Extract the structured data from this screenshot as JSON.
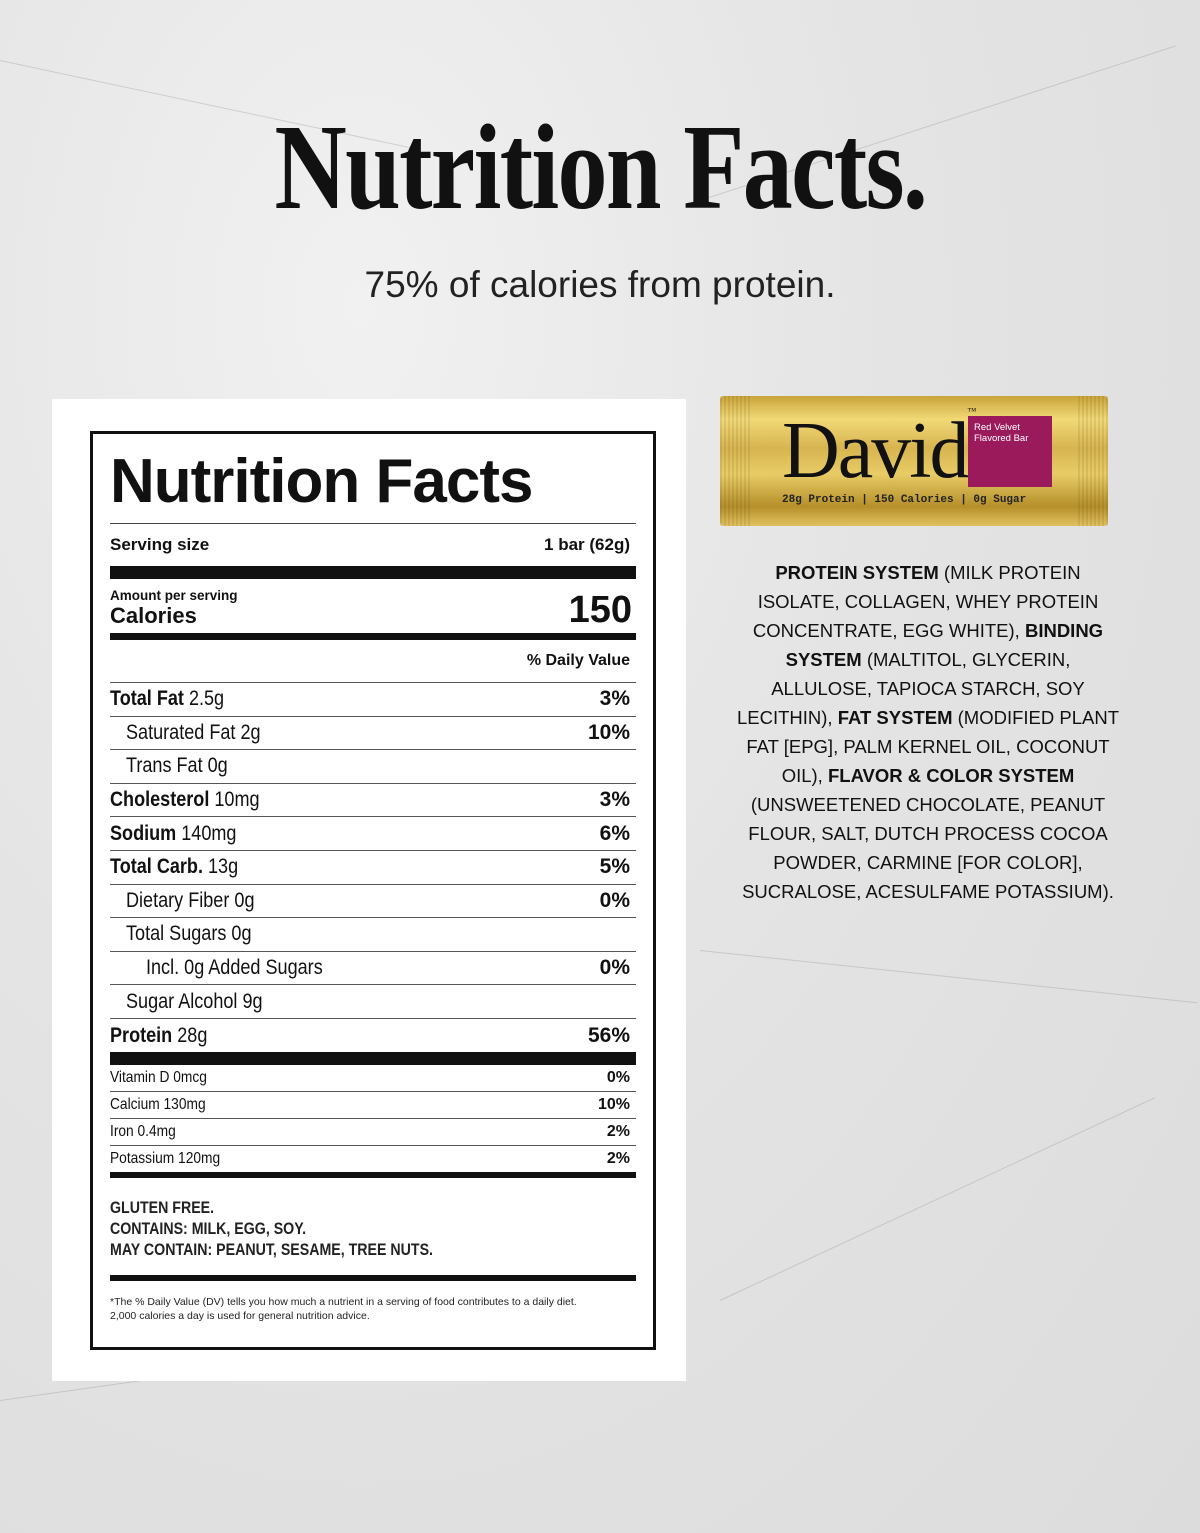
{
  "header": {
    "title": "Nutrition Facts.",
    "subtitle": "75% of calories from protein."
  },
  "label": {
    "title": "Nutrition Facts",
    "serving_label": "Serving size",
    "serving_value": "1 bar (62g)",
    "amount_per_serving": "Amount per serving",
    "calories_label": "Calories",
    "calories_value": "150",
    "dv_header": "% Daily Value",
    "nutrients": [
      {
        "name": "Total Fat",
        "amount": "2.5g",
        "dv": "3%",
        "bold": true,
        "indent": 0
      },
      {
        "name": "Saturated Fat",
        "amount": "2g",
        "dv": "10%",
        "bold": false,
        "indent": 1
      },
      {
        "name": "Trans Fat",
        "amount": "0g",
        "dv": "",
        "bold": false,
        "indent": 1
      },
      {
        "name": "Cholesterol",
        "amount": "10mg",
        "dv": "3%",
        "bold": true,
        "indent": 0
      },
      {
        "name": "Sodium",
        "amount": "140mg",
        "dv": "6%",
        "bold": true,
        "indent": 0
      },
      {
        "name": "Total Carb.",
        "amount": "13g",
        "dv": "5%",
        "bold": true,
        "indent": 0
      },
      {
        "name": "Dietary Fiber",
        "amount": "0g",
        "dv": "0%",
        "bold": false,
        "indent": 1
      },
      {
        "name": "Total Sugars",
        "amount": "0g",
        "dv": "",
        "bold": false,
        "indent": 1
      },
      {
        "name": "Incl.",
        "amount": "0g Added Sugars",
        "dv": "0%",
        "bold": false,
        "indent": 2
      },
      {
        "name": "Sugar Alcohol",
        "amount": "9g",
        "dv": "",
        "bold": false,
        "indent": 1
      },
      {
        "name": "Protein",
        "amount": "28g",
        "dv": "56%",
        "bold": true,
        "indent": 0
      }
    ],
    "vitamins": [
      {
        "name": "Vitamin D 0mcg",
        "dv": "0%"
      },
      {
        "name": "Calcium 130mg",
        "dv": "10%"
      },
      {
        "name": "Iron 0.4mg",
        "dv": "2%"
      },
      {
        "name": "Potassium 120mg",
        "dv": "2%"
      }
    ],
    "allergens": [
      "GLUTEN FREE.",
      "CONTAINS: MILK, EGG, SOY.",
      "MAY CONTAIN: PEANUT, SESAME, TREE NUTS."
    ],
    "footnote": [
      "*The % Daily Value (DV) tells you how much a nutrient in a serving of food contributes to a daily diet.",
      "2,000 calories a day is used for general nutrition advice."
    ]
  },
  "product": {
    "brand": "David",
    "trademark": "™",
    "flavor": [
      "Red Velvet",
      "Flavored Bar"
    ],
    "stats": "28g Protein | 150 Calories | 0g Sugar",
    "flavor_color": "#9a1a5c"
  },
  "ingredients": [
    [
      {
        "t": "PROTEIN SYSTEM",
        "b": true
      },
      {
        "t": " (MILK PROTEIN",
        "b": false
      }
    ],
    [
      {
        "t": "ISOLATE, COLLAGEN, WHEY PROTEIN",
        "b": false
      }
    ],
    [
      {
        "t": "CONCENTRATE, EGG WHITE), ",
        "b": false
      },
      {
        "t": "BINDING",
        "b": true
      }
    ],
    [
      {
        "t": "SYSTEM",
        "b": true
      },
      {
        "t": " (MALTITOL, GLYCERIN,",
        "b": false
      }
    ],
    [
      {
        "t": "ALLULOSE, TAPIOCA STARCH, SOY",
        "b": false
      }
    ],
    [
      {
        "t": "LECITHIN), ",
        "b": false
      },
      {
        "t": "FAT SYSTEM",
        "b": true
      },
      {
        "t": " (MODIFIED PLANT",
        "b": false
      }
    ],
    [
      {
        "t": "FAT [EPG], PALM KERNEL OIL, COCONUT",
        "b": false
      }
    ],
    [
      {
        "t": "OIL), ",
        "b": false
      },
      {
        "t": "FLAVOR & COLOR SYSTEM",
        "b": true
      }
    ],
    [
      {
        "t": "(UNSWEETENED CHOCOLATE, PEANUT",
        "b": false
      }
    ],
    [
      {
        "t": "FLOUR, SALT, DUTCH PROCESS COCOA",
        "b": false
      }
    ],
    [
      {
        "t": "POWDER, CARMINE [FOR COLOR],",
        "b": false
      }
    ],
    [
      {
        "t": "SUCRALOSE, ACESULFAME POTASSIUM).",
        "b": false
      }
    ]
  ]
}
